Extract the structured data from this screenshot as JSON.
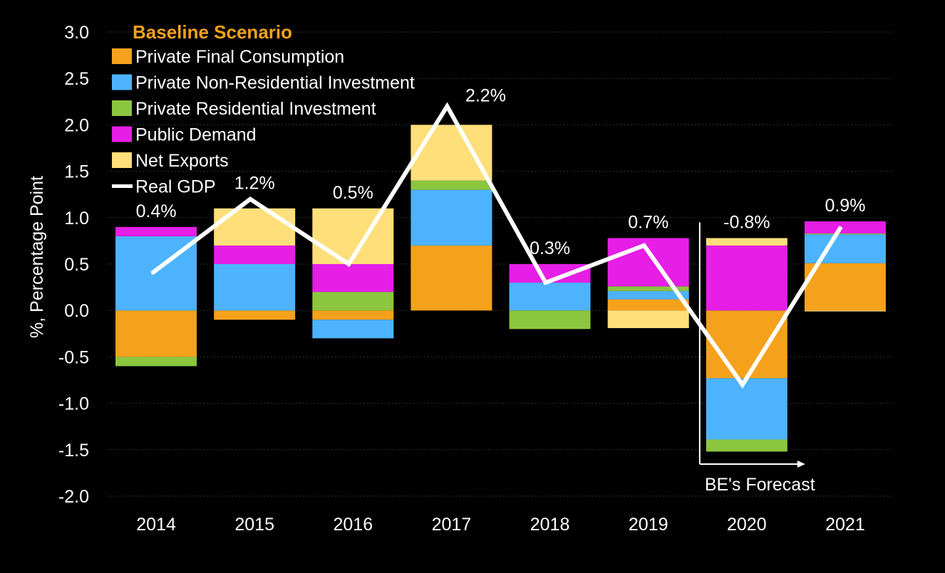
{
  "chart_data": {
    "type": "bar",
    "stacked": true,
    "legend_title": "Baseline Scenario",
    "ylabel": "%, Percentage Point",
    "ylim": [
      -2.0,
      3.0
    ],
    "ytick_step": 0.5,
    "grid": true,
    "legend_position": "top-left",
    "categories": [
      "2014",
      "2015",
      "2016",
      "2017",
      "2018",
      "2019",
      "2020",
      "2021"
    ],
    "series": [
      {
        "name": "Private Final Consumption",
        "color": "#f5a11c",
        "values": [
          -0.5,
          -0.1,
          -0.1,
          0.7,
          0.0,
          0.12,
          -0.73,
          0.51
        ]
      },
      {
        "name": "Private Non-Residential Investment",
        "color": "#4db3ff",
        "values": [
          0.8,
          0.5,
          -0.2,
          0.6,
          0.3,
          0.09,
          -0.66,
          0.31
        ]
      },
      {
        "name": "Private Residential Investment",
        "color": "#8cc63f",
        "values": [
          -0.1,
          0.0,
          0.2,
          0.1,
          -0.2,
          0.05,
          -0.13,
          0.01
        ]
      },
      {
        "name": "Public Demand",
        "color": "#e61ee6",
        "values": [
          0.1,
          0.2,
          0.3,
          0.0,
          0.2,
          0.52,
          0.7,
          0.13
        ]
      },
      {
        "name": "Net Exports",
        "color": "#ffdf7a",
        "values": [
          0.0,
          0.4,
          0.6,
          0.6,
          0.0,
          -0.19,
          0.08,
          -0.01
        ]
      }
    ],
    "line": {
      "name": "Real GDP",
      "color": "#ffffff",
      "values": [
        0.4,
        1.2,
        0.5,
        2.2,
        0.3,
        0.7,
        -0.8,
        0.9
      ],
      "labels": [
        "0.4%",
        "1.2%",
        "0.5%",
        "2.2%",
        "0.3%",
        "0.7%",
        "-0.8%",
        "0.9%"
      ]
    },
    "annotation": "BE's Forecast",
    "forecast_start": "2020"
  }
}
